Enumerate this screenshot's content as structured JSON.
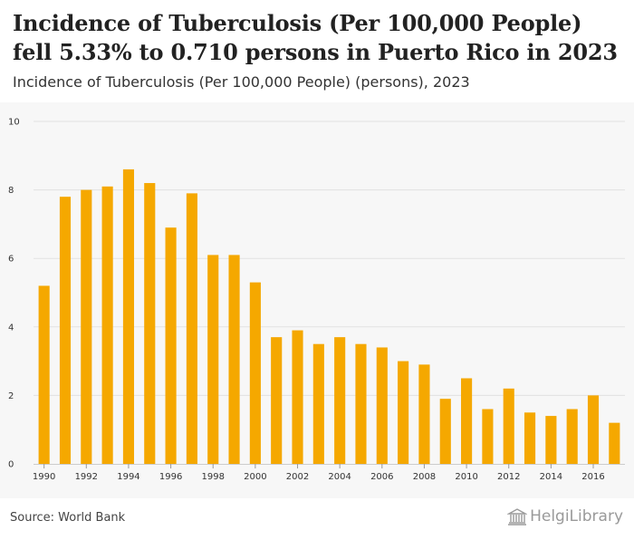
{
  "header": {
    "title": "Incidence of Tuberculosis (Per 100,000 People) fell 5.33% to 0.710 persons in Puerto Rico in 2023",
    "subtitle": "Incidence of Tuberculosis (Per 100,000 People) (persons), 2023"
  },
  "footer": {
    "source": "Source: World Bank",
    "logo_text": "HelgiLibrary"
  },
  "colors": {
    "bar": "#f5a800",
    "grid": "#e2e2e2",
    "axis_text": "#333333"
  },
  "chart_data": {
    "type": "bar",
    "title": "Incidence of Tuberculosis (Per 100,000 People) fell 5.33% to 0.710 persons in Puerto Rico in 2023",
    "subtitle": "Incidence of Tuberculosis (Per 100,000 People) (persons), 2023",
    "xlabel": "",
    "ylabel": "",
    "ylim": [
      0,
      10
    ],
    "yticks": [
      0,
      2,
      4,
      6,
      8,
      10
    ],
    "grid": true,
    "categories": [
      1990,
      1991,
      1992,
      1993,
      1994,
      1995,
      1996,
      1997,
      1998,
      1999,
      2000,
      2001,
      2002,
      2003,
      2004,
      2005,
      2006,
      2007,
      2008,
      2009,
      2010,
      2011,
      2012,
      2013,
      2014,
      2015,
      2016,
      2017
    ],
    "xtick_labels": [
      "1990",
      "1992",
      "1994",
      "1996",
      "1998",
      "2000",
      "2002",
      "2004",
      "2006",
      "2008",
      "2010",
      "2012",
      "2014",
      "2016"
    ],
    "values": [
      5.2,
      7.8,
      8.0,
      8.1,
      8.6,
      8.2,
      6.9,
      7.9,
      6.1,
      6.1,
      5.3,
      3.7,
      3.9,
      3.5,
      3.7,
      3.5,
      3.4,
      3.0,
      2.9,
      1.9,
      2.5,
      1.6,
      2.2,
      1.5,
      1.4,
      1.6,
      2.0,
      1.2
    ]
  }
}
